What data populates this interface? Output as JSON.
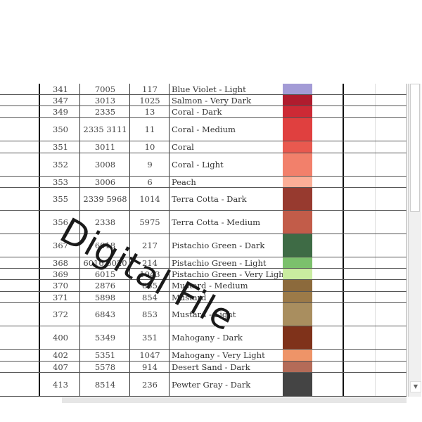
{
  "rows": [
    {
      "dmc": "341",
      "madeira": "7005",
      "anchor": "117",
      "name": "Blue Violet - Light",
      "color": "#a39bd6",
      "h": 16
    },
    {
      "dmc": "347",
      "madeira": "3013",
      "anchor": "1025",
      "name": "Salmon - Very Dark",
      "color": "#b01c2e",
      "h": 16
    },
    {
      "dmc": "349",
      "madeira": "2335",
      "anchor": "13",
      "name": "Coral - Dark",
      "color": "#cd2a35",
      "h": 17
    },
    {
      "dmc": "350",
      "madeira": "2335 3111",
      "anchor": "11",
      "name": "Coral - Medium",
      "color": "#e0403f",
      "h": 33
    },
    {
      "dmc": "351",
      "madeira": "3011",
      "anchor": "10",
      "name": "Coral",
      "color": "#e9594f",
      "h": 17
    },
    {
      "dmc": "352",
      "madeira": "3008",
      "anchor": "9",
      "name": "Coral - Light",
      "color": "#f2806b",
      "h": 33
    },
    {
      "dmc": "353",
      "madeira": "3006",
      "anchor": "6",
      "name": "Peach",
      "color": "#fbae97",
      "h": 16
    },
    {
      "dmc": "355",
      "madeira": "2339 5968",
      "anchor": "1014",
      "name": "Terra Cotta - Dark",
      "color": "#973a2f",
      "h": 33
    },
    {
      "dmc": "356",
      "madeira": "2338",
      "anchor": "5975",
      "name": "Terra Cotta - Medium",
      "color": "#c25c49",
      "h": 33
    },
    {
      "dmc": "367",
      "madeira": "6018",
      "anchor": "217",
      "name": "Pistachio Green - Dark",
      "color": "#3e6b45",
      "h": 33
    },
    {
      "dmc": "368",
      "madeira": "6016 6020",
      "anchor": "214",
      "name": "Pistachio Green - Light",
      "color": "#7bc06c",
      "h": 16
    },
    {
      "dmc": "369",
      "madeira": "6015",
      "anchor": "1043",
      "name": "Pistachio Green - Very Light",
      "color": "#c9eca0",
      "h": 16
    },
    {
      "dmc": "370",
      "madeira": "2876",
      "anchor": "855",
      "name": "Mustard - Medium",
      "color": "#8c6a3c",
      "h": 17
    },
    {
      "dmc": "371",
      "madeira": "5898",
      "anchor": "854",
      "name": "Mustard",
      "color": "#9c7a48",
      "h": 16
    },
    {
      "dmc": "372",
      "madeira": "6843",
      "anchor": "853",
      "name": "Mustard - Light",
      "color": "#a98e5f",
      "h": 33
    },
    {
      "dmc": "400",
      "madeira": "5349",
      "anchor": "351",
      "name": "Mahogany - Dark",
      "color": "#7f321a",
      "h": 33
    },
    {
      "dmc": "402",
      "madeira": "5351",
      "anchor": "1047",
      "name": "Mahogany - Very Light",
      "color": "#ee9468",
      "h": 17
    },
    {
      "dmc": "407",
      "madeira": "5578",
      "anchor": "914",
      "name": "Desert Sand - Dark",
      "color": "#b46b58",
      "h": 16
    },
    {
      "dmc": "413",
      "madeira": "8514",
      "anchor": "236",
      "name": "Pewter Gray - Dark",
      "color": "#444444",
      "h": 34
    }
  ],
  "watermark": "Digital File",
  "icons": {
    "scroll_down": "triangle-down-icon"
  }
}
